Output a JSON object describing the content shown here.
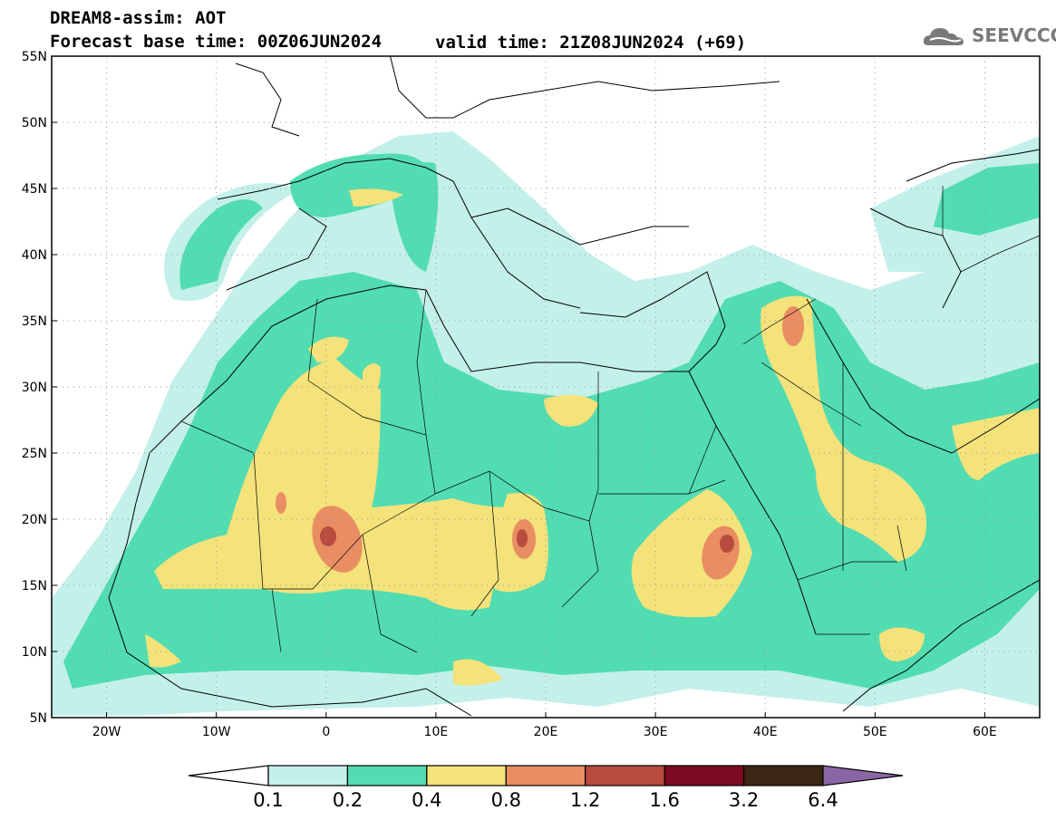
{
  "title": {
    "line1": "DREAM8-assim: AOT",
    "line2": "Forecast base time: 00Z06JUN2024",
    "valid": "valid time: 21Z08JUN2024 (+69)"
  },
  "logo": {
    "text": "SEEVCCC",
    "icon": "cloud-icon"
  },
  "map": {
    "lat_labels": [
      "55N",
      "50N",
      "45N",
      "40N",
      "35N",
      "30N",
      "25N",
      "20N",
      "15N",
      "10N",
      "5N"
    ],
    "lat_values": [
      55,
      50,
      45,
      40,
      35,
      30,
      25,
      20,
      15,
      10,
      5
    ],
    "lon_labels": [
      "20W",
      "10W",
      "0",
      "10E",
      "20E",
      "30E",
      "40E",
      "50E",
      "60E"
    ],
    "lon_values": [
      -20,
      -10,
      0,
      10,
      20,
      30,
      40,
      50,
      60
    ],
    "extent": {
      "lon": [
        -25,
        65
      ],
      "lat": [
        5,
        55
      ]
    }
  },
  "colorbar": {
    "labels": [
      "0.1",
      "0.2",
      "0.4",
      "0.8",
      "1.2",
      "1.6",
      "3.2",
      "6.4"
    ],
    "colors": [
      "#c4f0ea",
      "#52dcb2",
      "#f4e27a",
      "#e98d63",
      "#b94c3e",
      "#7c0a20",
      "#3c2513",
      "#8b66a6"
    ]
  },
  "colors": {
    "c1": "#c4f0ea",
    "c2": "#52dcb2",
    "c3": "#f4e27a",
    "c4": "#e98d63",
    "c5": "#b94c3e"
  }
}
